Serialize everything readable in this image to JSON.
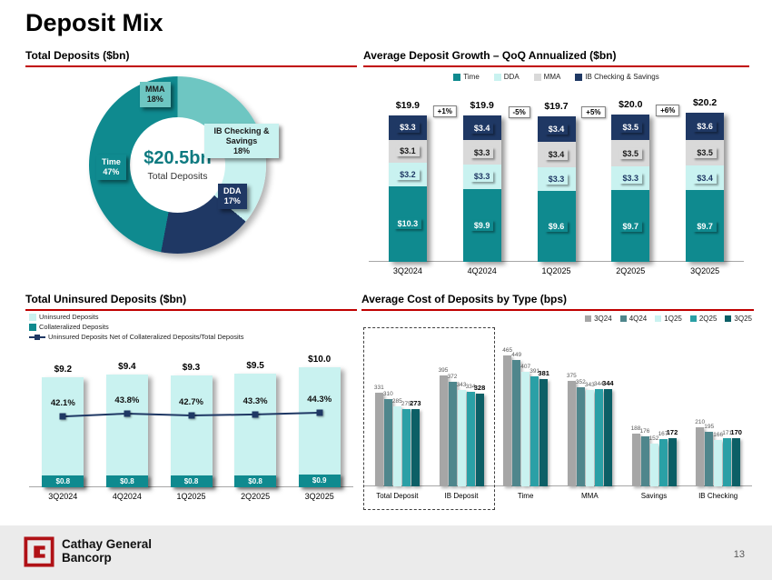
{
  "slide": {
    "title": "Deposit Mix",
    "page_number": "13"
  },
  "footer": {
    "logo_line1": "Cathay General",
    "logo_line2": "Bancorp"
  },
  "chart_data": [
    {
      "type": "pie",
      "title": "Total Deposits ($bn)",
      "center_value": "$20.5bn",
      "center_label": "Total Deposits",
      "segments": [
        {
          "label": "MMA",
          "pct": 18,
          "pct_label": "18%",
          "color": "#6ec6c2",
          "text_color": "#1a1a1a",
          "pos": {
            "left": 126,
            "top": 16
          }
        },
        {
          "label": "IB Checking & Savings",
          "pct": 18,
          "pct_label": "18%",
          "color": "#c9f2f0",
          "text_color": "#1a1a1a",
          "pos": {
            "left": 197,
            "top": 62
          }
        },
        {
          "label": "DDA",
          "pct": 17,
          "pct_label": "17%",
          "color": "#1f3864",
          "text_color": "#ffffff",
          "pos": {
            "left": 212,
            "top": 128
          }
        },
        {
          "label": "Time",
          "pct": 47,
          "pct_label": "47%",
          "color": "#0f8a8f",
          "text_color": "#ffffff",
          "pos": {
            "left": 78,
            "top": 96
          }
        }
      ]
    },
    {
      "type": "bar",
      "stacked": true,
      "title": "Average Deposit Growth – QoQ Annualized ($bn)",
      "categories": [
        "3Q2024",
        "4Q2024",
        "1Q2025",
        "2Q2025",
        "3Q2025"
      ],
      "totals": [
        "$19.9",
        "$19.9",
        "$19.7",
        "$20.0",
        "$20.2"
      ],
      "total_values": [
        19.9,
        19.9,
        19.7,
        20.0,
        20.2
      ],
      "growth_badges": [
        "+1%",
        "-5%",
        "+5%",
        "+6%"
      ],
      "series": [
        {
          "name": "Time",
          "color": "#0f8a8f",
          "text_color": "#ffffff",
          "values": [
            10.3,
            9.9,
            9.6,
            9.7,
            9.7
          ],
          "labels": [
            "$10.3",
            "$9.9",
            "$9.6",
            "$9.7",
            "$9.7"
          ]
        },
        {
          "name": "DDA",
          "color": "#c9f2f0",
          "text_color": "#1f3864",
          "values": [
            3.2,
            3.3,
            3.3,
            3.3,
            3.4
          ],
          "labels": [
            "$3.2",
            "$3.3",
            "$3.3",
            "$3.3",
            "$3.4"
          ]
        },
        {
          "name": "MMA",
          "color": "#d9d9d9",
          "text_color": "#1a1a1a",
          "values": [
            3.1,
            3.3,
            3.4,
            3.5,
            3.5
          ],
          "labels": [
            "$3.1",
            "$3.3",
            "$3.4",
            "$3.5",
            "$3.5"
          ]
        },
        {
          "name": "IB Checking & Savings",
          "color": "#1f3864",
          "text_color": "#ffffff",
          "values": [
            3.3,
            3.4,
            3.4,
            3.5,
            3.6
          ],
          "labels": [
            "$3.3",
            "$3.4",
            "$3.4",
            "$3.5",
            "$3.6"
          ]
        }
      ],
      "legend": [
        {
          "label": "Time",
          "color": "#0f8a8f"
        },
        {
          "label": "DDA",
          "color": "#c9f2f0"
        },
        {
          "label": "MMA",
          "color": "#d9d9d9"
        },
        {
          "label": "IB Checking & Savings",
          "color": "#1f3864"
        }
      ]
    },
    {
      "type": "bar",
      "title": "Total Uninsured Deposits ($bn)",
      "categories": [
        "3Q2024",
        "4Q2024",
        "1Q2025",
        "2Q2025",
        "3Q2025"
      ],
      "legend": [
        {
          "label": "Uninsured Deposits",
          "color": "#c9f2f0",
          "marker": "square"
        },
        {
          "label": "Collateralized Deposits",
          "color": "#0f8a8f",
          "marker": "square"
        },
        {
          "label": "Uninsured Deposits Net of Collateralized Deposits/Total Deposits",
          "color": "#1f3864",
          "marker": "line"
        }
      ],
      "uninsured": {
        "values": [
          9.2,
          9.4,
          9.3,
          9.5,
          10.0
        ],
        "labels": [
          "$9.2",
          "$9.4",
          "$9.3",
          "$9.5",
          "$10.0"
        ]
      },
      "collateralized": {
        "values": [
          0.8,
          0.8,
          0.8,
          0.8,
          0.9
        ],
        "labels": [
          "$0.8",
          "$0.8",
          "$0.8",
          "$0.8",
          "$0.9"
        ]
      },
      "line": {
        "values": [
          42.1,
          43.8,
          42.7,
          43.3,
          44.3
        ],
        "labels": [
          "42.1%",
          "43.8%",
          "42.7%",
          "43.3%",
          "44.3%"
        ]
      }
    },
    {
      "type": "bar",
      "grouped": true,
      "title": "Average Cost of Deposits by Type (bps)",
      "categories": [
        "Total Deposit",
        "IB Deposit",
        "Time",
        "MMA",
        "Savings",
        "IB Checking"
      ],
      "series": [
        {
          "name": "3Q24",
          "color": "#a6a6a6",
          "values": [
            331,
            395,
            465,
            375,
            188,
            210
          ]
        },
        {
          "name": "4Q24",
          "color": "#4f868c",
          "values": [
            310,
            372,
            449,
            352,
            176,
            195
          ]
        },
        {
          "name": "1Q25",
          "color": "#c9f2f0",
          "values": [
            285,
            343,
            407,
            343,
            152,
            166
          ]
        },
        {
          "name": "2Q25",
          "color": "#2aa0a6",
          "values": [
            275,
            334,
            391,
            344,
            167,
            171
          ]
        },
        {
          "name": "3Q25",
          "color": "#0c5f66",
          "values": [
            273,
            328,
            381,
            344,
            172,
            170
          ]
        }
      ],
      "highlight_box_groups": [
        0,
        1
      ]
    }
  ]
}
